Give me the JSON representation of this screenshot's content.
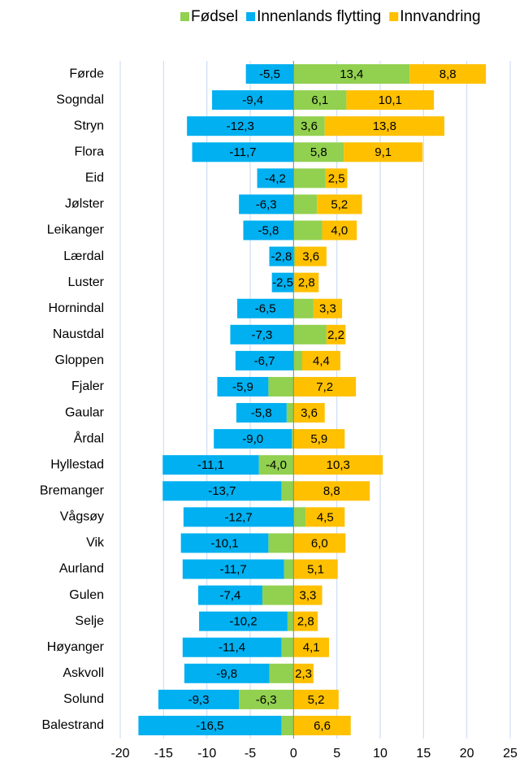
{
  "chart_data": {
    "type": "bar",
    "orientation": "horizontal",
    "stacked": "diverging",
    "categories": [
      "Førde",
      "Sogndal",
      "Stryn",
      "Flora",
      "Eid",
      "Jølster",
      "Leikanger",
      "Lærdal",
      "Luster",
      "Hornindal",
      "Naustdal",
      "Gloppen",
      "Fjaler",
      "Gaular",
      "Årdal",
      "Hyllestad",
      "Bremanger",
      "Vågsøy",
      "Vik",
      "Aurland",
      "Gulen",
      "Selje",
      "Høyanger",
      "Askvoll",
      "Solund",
      "Balestrand"
    ],
    "series": [
      {
        "name": "Fødsel",
        "color": "#92d050",
        "values": [
          13.4,
          6.1,
          3.6,
          5.8,
          3.7,
          2.7,
          3.3,
          0.2,
          0.1,
          2.3,
          3.8,
          1.0,
          -2.9,
          -0.8,
          -0.2,
          -4.0,
          -1.4,
          1.4,
          -2.9,
          -1.1,
          -3.6,
          -0.7,
          -1.4,
          -2.8,
          -6.3,
          -1.4
        ],
        "value_labels": [
          "13,4",
          "6,1",
          "3,6",
          "5,8",
          null,
          null,
          null,
          null,
          null,
          null,
          null,
          null,
          null,
          null,
          null,
          "-4,0",
          null,
          null,
          null,
          null,
          null,
          null,
          null,
          null,
          "-6,3",
          null
        ]
      },
      {
        "name": "Innenlands flytting",
        "color": "#00b0f0",
        "values": [
          -5.5,
          -9.4,
          -12.3,
          -11.7,
          -4.2,
          -6.3,
          -5.8,
          -2.8,
          -2.5,
          -6.5,
          -7.3,
          -6.7,
          -5.9,
          -5.8,
          -9.0,
          -11.1,
          -13.7,
          -12.7,
          -10.1,
          -11.7,
          -7.4,
          -10.2,
          -11.4,
          -9.8,
          -9.3,
          -16.5
        ],
        "value_labels": [
          "-5,5",
          "-9,4",
          "-12,3",
          "-11,7",
          "-4,2",
          "-6,3",
          "-5,8",
          "-2,8",
          "-2,5",
          "-6,5",
          "-7,3",
          "-6,7",
          "-5,9",
          "-5,8",
          "-9,0",
          "-11,1",
          "-13,7",
          "-12,7",
          "-10,1",
          "-11,7",
          "-7,4",
          "-10,2",
          "-11,4",
          "-9,8",
          "-9,3",
          "-16,5"
        ]
      },
      {
        "name": "Innvandring",
        "color": "#ffc000",
        "values": [
          8.8,
          10.1,
          13.8,
          9.1,
          2.5,
          5.2,
          4.0,
          3.6,
          2.8,
          3.3,
          2.2,
          4.4,
          7.2,
          3.6,
          5.9,
          10.3,
          8.8,
          4.5,
          6.0,
          5.1,
          3.3,
          2.8,
          4.1,
          2.3,
          5.2,
          6.6
        ],
        "value_labels": [
          "8,8",
          "10,1",
          "13,8",
          "9,1",
          "2,5",
          "5,2",
          "4,0",
          "3,6",
          "2,8",
          "3,3",
          "2,2",
          "4,4",
          "7,2",
          "3,6",
          "5,9",
          "10,3",
          "8,8",
          "4,5",
          "6,0",
          "5,1",
          "3,3",
          "2,8",
          "4,1",
          "2,3",
          "5,2",
          "6,6"
        ]
      }
    ],
    "xlim": [
      -20,
      25
    ],
    "xticks": [
      -20,
      -15,
      -10,
      -5,
      0,
      5,
      10,
      15,
      20,
      25
    ],
    "grid": true,
    "legend": "top"
  }
}
